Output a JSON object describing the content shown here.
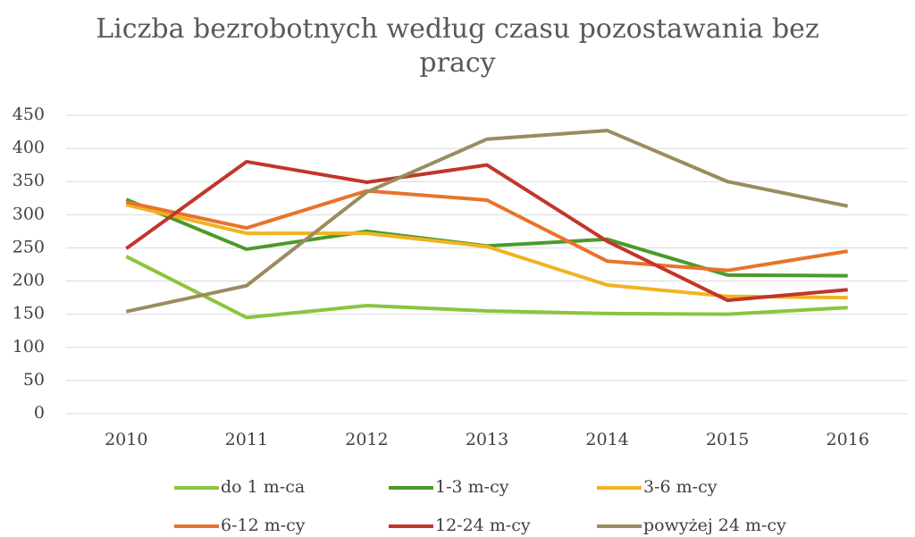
{
  "chart_data": {
    "type": "line",
    "title": "Liczba bezrobotnych według czasu pozostawania bez pracy",
    "categories": [
      "2010",
      "2011",
      "2012",
      "2013",
      "2014",
      "2015",
      "2016"
    ],
    "series": [
      {
        "name": "do 1 m-ca",
        "color": "#8cc43f",
        "values": [
          237,
          145,
          163,
          155,
          151,
          150,
          160
        ]
      },
      {
        "name": "1-3 m-cy",
        "color": "#4b9a2a",
        "values": [
          323,
          248,
          275,
          253,
          263,
          209,
          208
        ]
      },
      {
        "name": "3-6 m-cy",
        "color": "#f0b323",
        "values": [
          315,
          272,
          272,
          252,
          194,
          177,
          175
        ]
      },
      {
        "name": "6-12 m-cy",
        "color": "#e8732a",
        "values": [
          319,
          280,
          336,
          322,
          230,
          216,
          245
        ]
      },
      {
        "name": "12-24 m-cy",
        "color": "#c2362a",
        "values": [
          249,
          380,
          349,
          375,
          260,
          171,
          187
        ]
      },
      {
        "name": "powyżej 24 m-cy",
        "color": "#9a8c5e",
        "values": [
          154,
          193,
          334,
          414,
          427,
          350,
          313
        ]
      }
    ],
    "ylim": [
      0,
      450
    ],
    "yticks": [
      0,
      50,
      100,
      150,
      200,
      250,
      300,
      350,
      400,
      450
    ],
    "grid": true,
    "legend": "bottom"
  }
}
